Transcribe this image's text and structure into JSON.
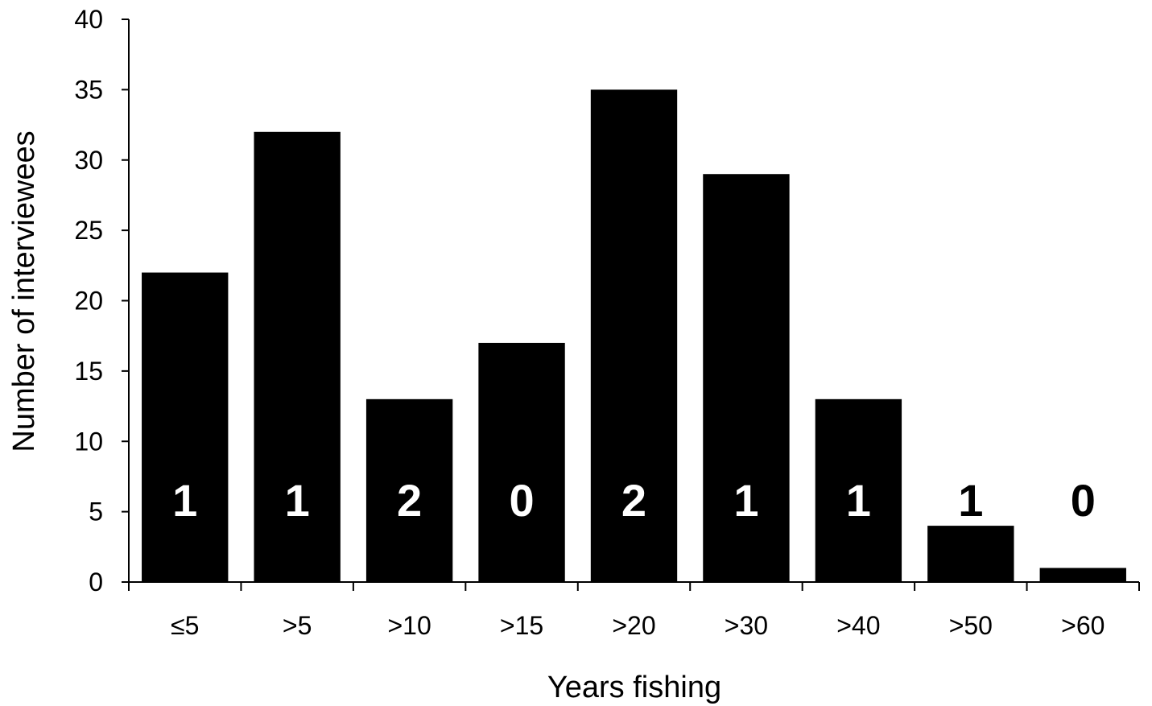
{
  "chart_data": {
    "type": "bar",
    "categories": [
      "≤5",
      ">5",
      ">10",
      ">15",
      ">20",
      ">30",
      ">40",
      ">50",
      ">60"
    ],
    "values": [
      22,
      32,
      13,
      17,
      35,
      29,
      13,
      4,
      1
    ],
    "bar_labels": [
      "1",
      "1",
      "2",
      "0",
      "2",
      "1",
      "1",
      "1",
      "0"
    ],
    "xlabel": "Years fishing",
    "ylabel": "Number of interviewees",
    "ylim": [
      0,
      40
    ],
    "yticks": [
      0,
      5,
      10,
      15,
      20,
      25,
      30,
      35,
      40
    ],
    "grid": false,
    "legend": "none",
    "colors": {
      "bar": "#000000",
      "label_inside": "#ffffff",
      "label_outside": "#000000",
      "axis": "#000000"
    }
  }
}
